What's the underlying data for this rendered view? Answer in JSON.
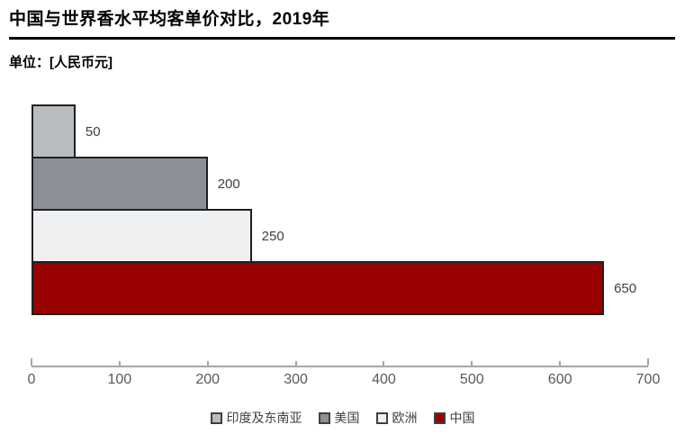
{
  "header": {
    "title": "中国与世界香水平均客单价对比，2019年",
    "unit_label": "单位：[人民币元]"
  },
  "chart_data": {
    "type": "bar",
    "orientation": "horizontal",
    "title": "中国与世界香水平均客单价对比，2019年",
    "unit": "人民币元",
    "categories": [
      "印度及东南亚",
      "美国",
      "欧洲",
      "中国"
    ],
    "values": [
      50,
      200,
      250,
      650
    ],
    "value_labels": [
      "50",
      "200",
      "250",
      "650"
    ],
    "colors": [
      "#b9bdbf",
      "#8a9096",
      "#eef0f1",
      "#990000"
    ],
    "bar_border_color": "#1f1f1f",
    "value_label_color": "#404040",
    "xlim": [
      0,
      700
    ],
    "x_ticks": [
      0,
      100,
      200,
      300,
      400,
      500,
      600,
      700
    ],
    "x_tick_labels": [
      "0",
      "100",
      "200",
      "300",
      "400",
      "500",
      "600",
      "700"
    ],
    "axis_color": "#a6a6a6",
    "tick_label_color": "#595959",
    "grid": false,
    "legend_position": "bottom",
    "legend": [
      {
        "label": "印度及东南亚",
        "color": "#b9bdbf"
      },
      {
        "label": "美国",
        "color": "#8a9096"
      },
      {
        "label": "欧洲",
        "color": "#eef0f1"
      },
      {
        "label": "中国",
        "color": "#990000"
      }
    ]
  }
}
